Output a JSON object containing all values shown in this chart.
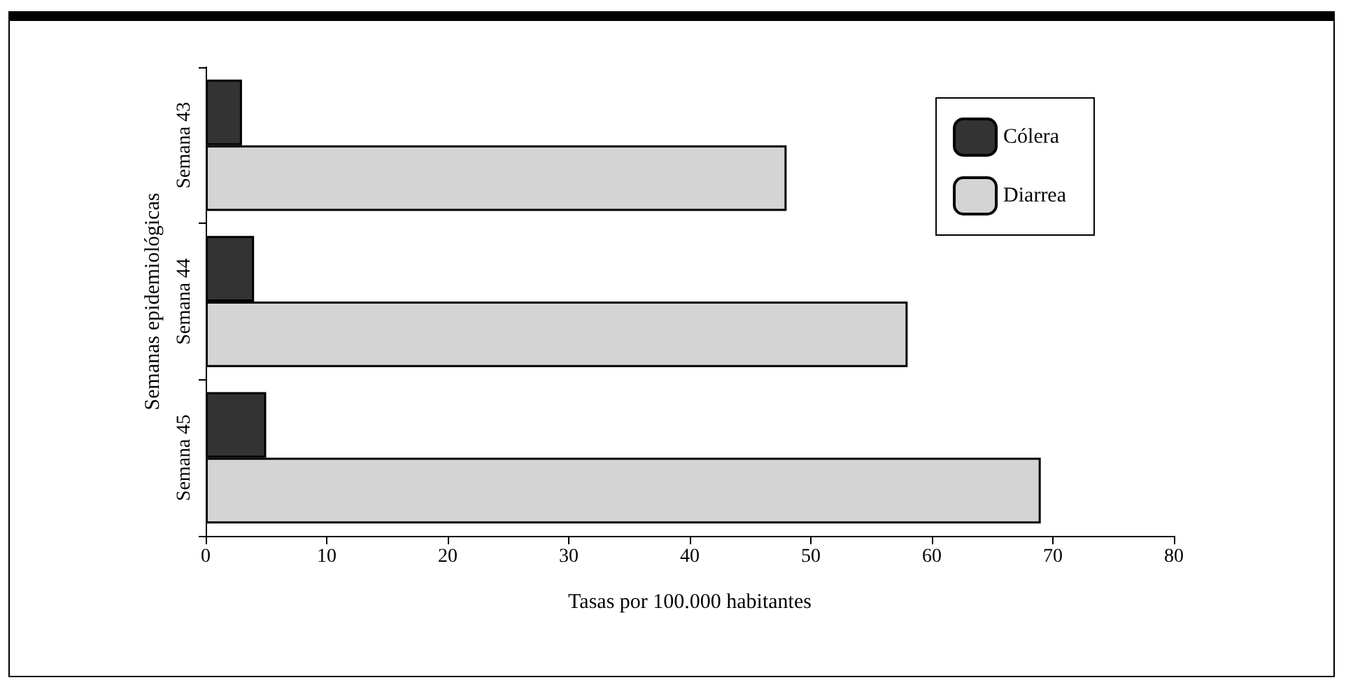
{
  "chart_data": {
    "type": "bar",
    "orientation": "horizontal",
    "xlabel": "Tasas por 100.000 habitantes",
    "ylabel": "Semanas epidemiológicas",
    "categories": [
      "Semana 43",
      "Semana 44",
      "Semana 45"
    ],
    "series": [
      {
        "name": "Cólera",
        "color": "#333333",
        "values": [
          3,
          4,
          5
        ]
      },
      {
        "name": "Diarrea",
        "color": "#d4d4d4",
        "values": [
          48,
          58,
          69
        ]
      }
    ],
    "xlim": [
      0,
      80
    ],
    "xticks": [
      0,
      10,
      20,
      30,
      40,
      50,
      60,
      70,
      80
    ],
    "grid": false,
    "legend": "top right"
  }
}
